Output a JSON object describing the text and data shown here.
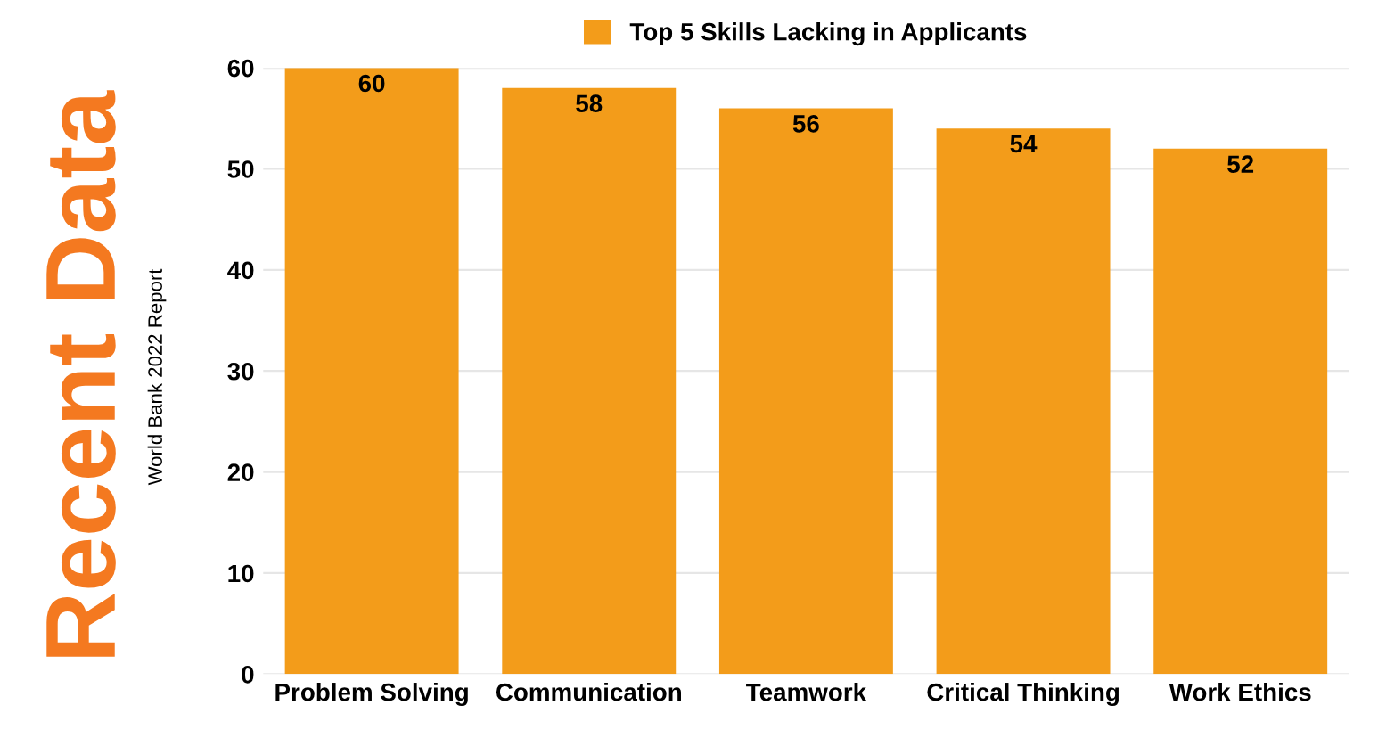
{
  "chart_data": {
    "type": "bar",
    "title": "Recent Data",
    "subtitle": "World Bank 2022 Report",
    "categories": [
      "Problem Solving",
      "Communication",
      "Teamwork",
      "Critical Thinking",
      "Work Ethics"
    ],
    "series": [
      {
        "name": "Top 5 Skills Lacking in Applicants",
        "color": "#f39c1a",
        "values": [
          60,
          58,
          56,
          54,
          52
        ]
      }
    ],
    "ylim": [
      0,
      60
    ],
    "yticks": [
      0,
      10,
      20,
      30,
      40,
      50,
      60
    ],
    "grid": "y",
    "legend": "top",
    "data_labels": true
  }
}
